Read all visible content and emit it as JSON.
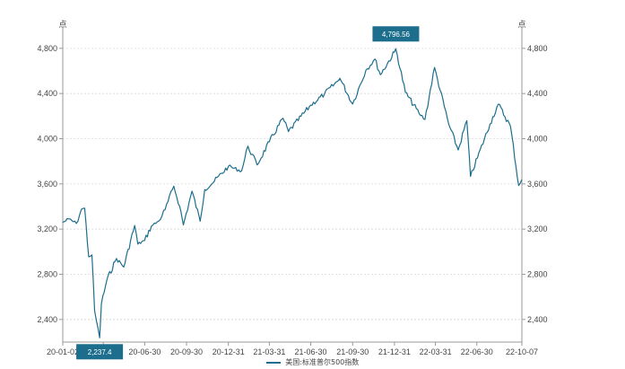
{
  "chart_data": {
    "type": "line",
    "unit_label": "点",
    "y_ticks": [
      2400,
      2800,
      3200,
      3600,
      4000,
      4400,
      4800
    ],
    "y_tick_labels": [
      "2,400",
      "2,800",
      "3,200",
      "3,600",
      "4,000",
      "4,400",
      "4,800"
    ],
    "ylim": [
      2237.4,
      4796.56
    ],
    "x_ticks": [
      "2020-01-02",
      "2020-03-31",
      "2020-06-30",
      "2020-09-30",
      "2020-12-31",
      "2021-03-31",
      "2021-06-30",
      "2021-09-30",
      "2021-12-31",
      "2022-03-31",
      "2022-06-30",
      "2022-10-07"
    ],
    "x_tick_labels": [
      "20-01-02",
      "20-03-31",
      "20-06-30",
      "20-09-30",
      "20-12-31",
      "21-03-31",
      "21-06-30",
      "21-09-30",
      "21-12-31",
      "22-03-31",
      "22-06-30",
      "22-10-07"
    ],
    "grid": true,
    "legend_position": "bottom",
    "series": [
      {
        "name": "美国:标准普尔500指数",
        "color": "#1c6e8c",
        "x": [
          "2020-01-02",
          "2020-01-15",
          "2020-02-01",
          "2020-02-12",
          "2020-02-19",
          "2020-02-28",
          "2020-03-06",
          "2020-03-12",
          "2020-03-16",
          "2020-03-23",
          "2020-03-27",
          "2020-04-08",
          "2020-04-29",
          "2020-05-15",
          "2020-06-08",
          "2020-06-15",
          "2020-06-30",
          "2020-07-15",
          "2020-07-31",
          "2020-08-14",
          "2020-09-02",
          "2020-09-15",
          "2020-09-23",
          "2020-10-12",
          "2020-10-30",
          "2020-11-09",
          "2020-11-30",
          "2020-12-31",
          "2021-01-29",
          "2021-02-12",
          "2021-03-04",
          "2021-03-31",
          "2021-04-30",
          "2021-05-12",
          "2021-06-30",
          "2021-07-30",
          "2021-08-31",
          "2021-09-02",
          "2021-09-30",
          "2021-10-29",
          "2021-11-18",
          "2021-11-30",
          "2021-12-31",
          "2022-01-03",
          "2022-01-24",
          "2022-02-23",
          "2022-03-08",
          "2022-03-29",
          "2022-04-29",
          "2022-05-20",
          "2022-06-08",
          "2022-06-16",
          "2022-07-29",
          "2022-08-16",
          "2022-09-12",
          "2022-09-30",
          "2022-10-07"
        ],
        "values": [
          3258,
          3290,
          3250,
          3375,
          3386,
          2955,
          2972,
          2480,
          2386,
          2237.4,
          2541,
          2749,
          2940,
          2864,
          3232,
          3067,
          3100,
          3227,
          3271,
          3373,
          3580,
          3401,
          3237,
          3535,
          3270,
          3550,
          3622,
          3756,
          3714,
          3934,
          3768,
          3973,
          4181,
          4063,
          4297,
          4395,
          4522,
          4536,
          4307,
          4605,
          4705,
          4567,
          4766,
          4796.56,
          4410,
          4225,
          4170,
          4631,
          4132,
          3901,
          4160,
          3666,
          4130,
          4305,
          4110,
          3585,
          3640
        ]
      }
    ],
    "annotations": [
      {
        "label": "4,796.56",
        "x": "2022-01-03",
        "value": 4796.56
      },
      {
        "label": "2,237.4",
        "x": "2020-03-23",
        "value": 2237.4
      }
    ]
  }
}
